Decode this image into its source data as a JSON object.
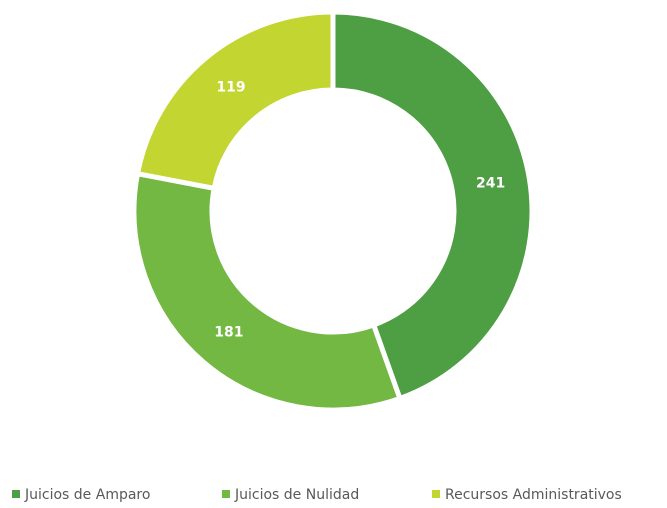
{
  "chart_data": {
    "type": "donut",
    "categories": [
      "Juicios de Amparo",
      "Juicios de Nulidad",
      "Recursos Administrativos"
    ],
    "values": [
      241,
      181,
      119
    ],
    "colors": [
      "#4e9e44",
      "#72b843",
      "#c2d530"
    ],
    "legend": "bottom"
  }
}
